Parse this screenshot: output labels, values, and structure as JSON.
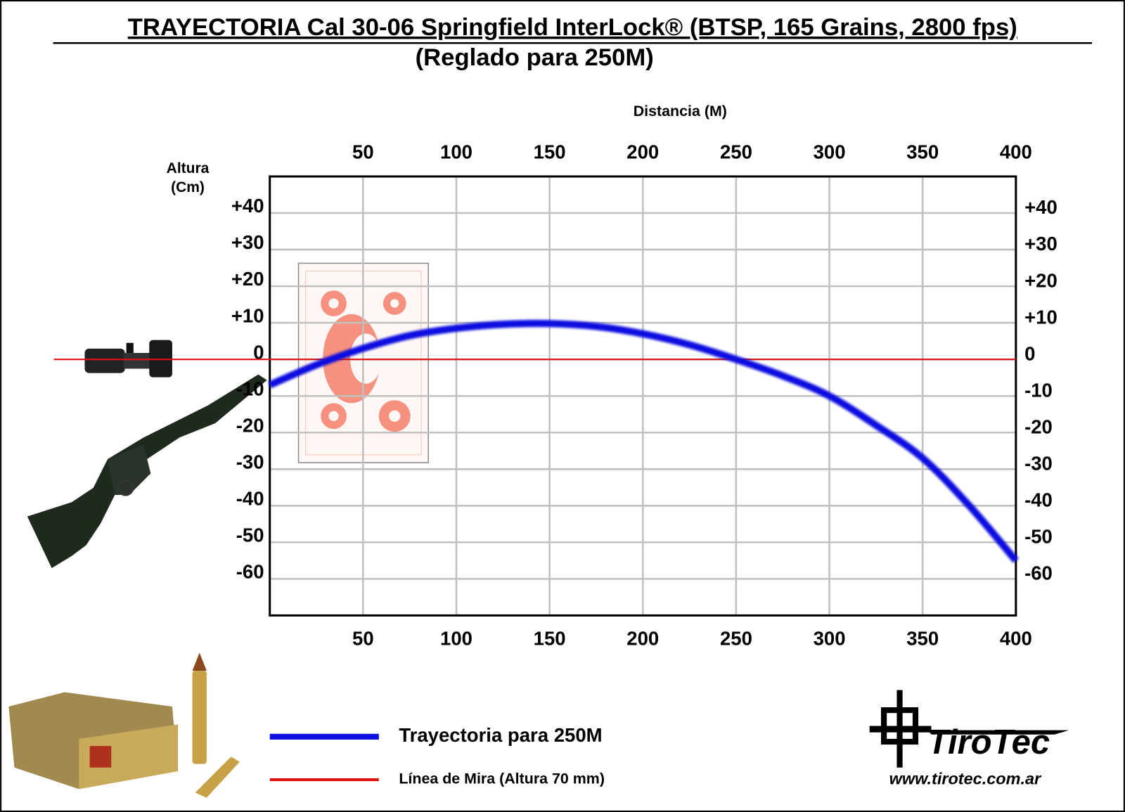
{
  "chart_data": {
    "type": "line",
    "title": "TRAYECTORIA Cal 30-06 Springfield InterLock® (BTSP, 165 Grains, 2800 fps)",
    "subtitle": "(Reglado para 250M)",
    "x_label": "Distancia (M)",
    "y_label": "Altura (Cm)",
    "x": [
      0,
      25,
      50,
      75,
      100,
      125,
      150,
      175,
      200,
      225,
      250,
      275,
      300,
      325,
      350,
      375,
      400
    ],
    "series": [
      {
        "name": "Trayectoria para 250M",
        "color": "#1010e0",
        "values": [
          -7,
          -1.5,
          3,
          6.5,
          8.5,
          9.6,
          9.8,
          9,
          7,
          4,
          0,
          -4.5,
          -10,
          -18,
          -27,
          -40,
          -55
        ]
      },
      {
        "name": "Línea de Mira (Altura 70 mm)",
        "color": "#e01010",
        "values": [
          0,
          0,
          0,
          0,
          0,
          0,
          0,
          0,
          0,
          0,
          0,
          0,
          0,
          0,
          0,
          0,
          0
        ]
      }
    ],
    "xlim": [
      0,
      400
    ],
    "xticks": [
      50,
      100,
      150,
      200,
      250,
      300,
      350,
      400
    ],
    "ylim": [
      -70,
      50
    ],
    "yticks": [
      {
        "value": 40,
        "label": "+40"
      },
      {
        "value": 30,
        "label": "+30"
      },
      {
        "value": 20,
        "label": "+20"
      },
      {
        "value": 10,
        "label": "+10"
      },
      0,
      -10,
      -20,
      -30,
      -40,
      -50,
      -60
    ],
    "grid": true,
    "logo": {
      "name": "TiroTec",
      "url": "www.tirotec.com.ar"
    }
  }
}
